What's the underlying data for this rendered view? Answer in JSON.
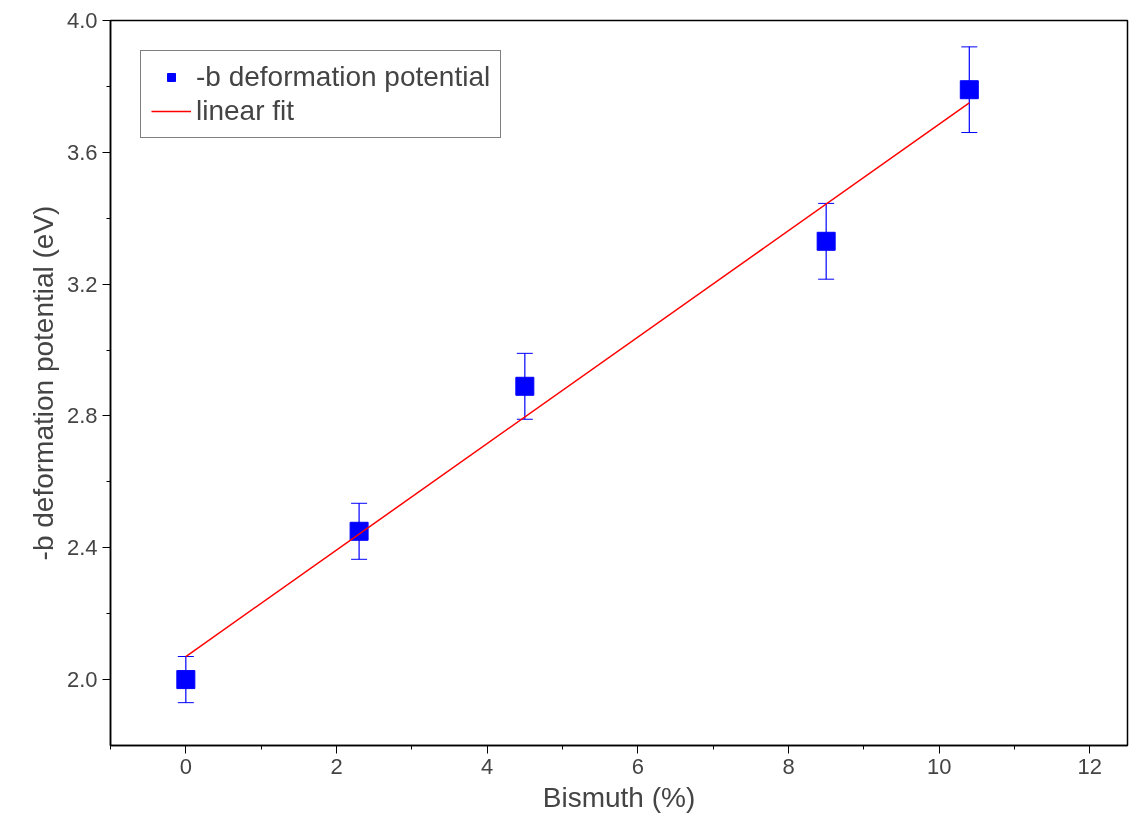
{
  "chart_data": {
    "type": "scatter",
    "xlabel": "Bismuth (%)",
    "ylabel": "-b deformation potential (eV)",
    "xlim": [
      -1,
      12.5
    ],
    "ylim": [
      1.8,
      4.0
    ],
    "xticks": [
      0,
      2,
      4,
      6,
      8,
      10,
      12
    ],
    "yticks": [
      {
        "value": 2.0,
        "label": "2.0"
      },
      {
        "value": 2.4,
        "label": "2.4"
      },
      {
        "value": 2.8,
        "label": "2.8"
      },
      {
        "value": 3.2,
        "label": "3.2"
      },
      {
        "value": 3.6,
        "label": "3.6"
      },
      {
        "value": 4.0,
        "label": "4.0"
      }
    ],
    "grid": false,
    "legend": "top left",
    "series": [
      {
        "name": "-b deformation potential",
        "marker": "square",
        "color": "#0000ff",
        "x": [
          0,
          2.3,
          4.5,
          8.5,
          10.4
        ],
        "values": [
          2.0,
          2.45,
          2.89,
          3.33,
          3.79
        ],
        "errors": [
          0.07,
          0.085,
          0.1,
          0.115,
          0.13
        ]
      },
      {
        "name": "linear fit",
        "type": "line",
        "marker": "none",
        "line_style": "solid",
        "color": "#ff0000",
        "x": [
          0,
          10.4
        ],
        "values": [
          2.07,
          3.75
        ]
      }
    ]
  }
}
